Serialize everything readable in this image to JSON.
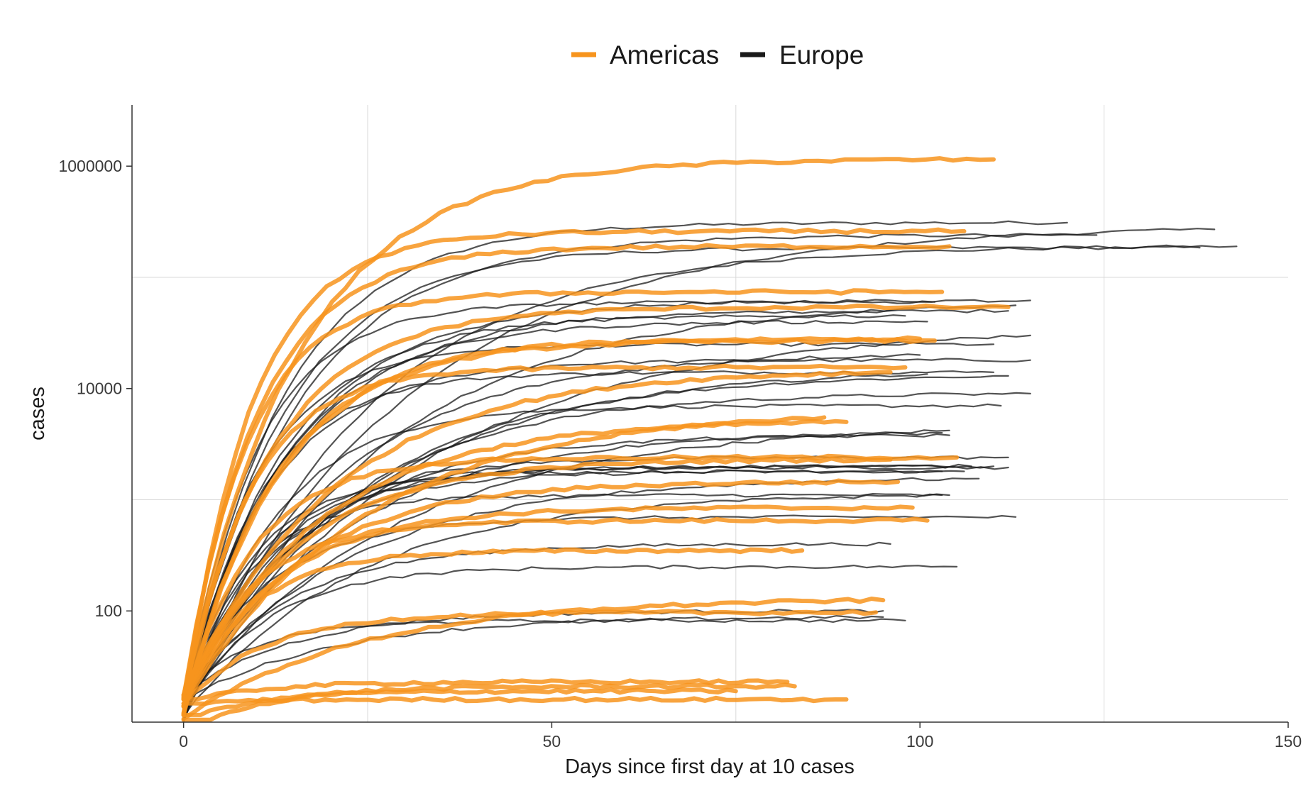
{
  "chart_data": {
    "type": "line",
    "title": "",
    "xlabel": "Days since first day at 10 cases",
    "ylabel": "cases",
    "xlim": [
      -7,
      150
    ],
    "ylim_log10": [
      1.0,
      6.55
    ],
    "y_scale": "log10",
    "x_ticks": [
      0,
      50,
      100,
      150
    ],
    "x_tick_labels": [
      "0",
      "50",
      "100",
      "150"
    ],
    "y_ticks": [
      100,
      10000,
      1000000
    ],
    "y_tick_labels": [
      "100",
      "10000",
      "1000000"
    ],
    "minor_grid_y": [
      10,
      1000,
      100000
    ],
    "minor_grid_x": [
      25,
      75,
      125
    ],
    "grid": "major-and-minor, light gray",
    "legend": {
      "position": "top",
      "entries": [
        {
          "label": "Americas",
          "color": "#F7941D"
        },
        {
          "label": "Europe",
          "color": "#1a1a1a"
        }
      ]
    },
    "groups": [
      {
        "name": "Europe",
        "color": "#1a1a1a",
        "series_endpoints": [
          {
            "days": 120,
            "cases": 310000
          },
          {
            "days": 140,
            "cases": 270000
          },
          {
            "days": 143,
            "cases": 190000
          },
          {
            "days": 138,
            "cases": 185000
          },
          {
            "days": 124,
            "cases": 240000
          },
          {
            "days": 115,
            "cases": 62000
          },
          {
            "days": 113,
            "cases": 56000
          },
          {
            "days": 112,
            "cases": 50000
          },
          {
            "days": 115,
            "cases": 30000
          },
          {
            "days": 110,
            "cases": 25000
          },
          {
            "days": 115,
            "cases": 18000
          },
          {
            "days": 112,
            "cases": 13000
          },
          {
            "days": 110,
            "cases": 14000
          },
          {
            "days": 115,
            "cases": 9000
          },
          {
            "days": 111,
            "cases": 7000
          },
          {
            "days": 103,
            "cases": 4000
          },
          {
            "days": 104,
            "cases": 4200
          },
          {
            "days": 112,
            "cases": 2400
          },
          {
            "days": 112,
            "cases": 1950
          },
          {
            "days": 110,
            "cases": 2000
          },
          {
            "days": 106,
            "cases": 1800
          },
          {
            "days": 108,
            "cases": 1550
          },
          {
            "days": 104,
            "cases": 1100
          },
          {
            "days": 113,
            "cases": 700
          },
          {
            "days": 96,
            "cases": 400
          },
          {
            "days": 95,
            "cases": 100
          },
          {
            "days": 98,
            "cases": 82
          },
          {
            "days": 95,
            "cases": 88
          },
          {
            "days": 105,
            "cases": 250
          },
          {
            "days": 103,
            "cases": 1800
          },
          {
            "days": 102,
            "cases": 60000
          },
          {
            "days": 101,
            "cases": 40000
          },
          {
            "days": 100,
            "cases": 20000
          },
          {
            "days": 98,
            "cases": 45000
          },
          {
            "days": 101,
            "cases": 13500
          },
          {
            "days": 104,
            "cases": 3800
          },
          {
            "days": 107,
            "cases": 2000
          },
          {
            "days": 103,
            "cases": 1100
          }
        ]
      },
      {
        "name": "Americas",
        "color": "#F7941D",
        "series_endpoints": [
          {
            "days": 110,
            "cases": 1150000
          },
          {
            "days": 106,
            "cases": 260000
          },
          {
            "days": 104,
            "cases": 190000
          },
          {
            "days": 112,
            "cases": 54000
          },
          {
            "days": 103,
            "cases": 74000
          },
          {
            "days": 100,
            "cases": 28000
          },
          {
            "days": 102,
            "cases": 27000
          },
          {
            "days": 98,
            "cases": 15500
          },
          {
            "days": 96,
            "cases": 14000
          },
          {
            "days": 87,
            "cases": 5500
          },
          {
            "days": 90,
            "cases": 5000
          },
          {
            "days": 96,
            "cases": 2300
          },
          {
            "days": 105,
            "cases": 2400
          },
          {
            "days": 97,
            "cases": 1450
          },
          {
            "days": 99,
            "cases": 850
          },
          {
            "days": 101,
            "cases": 650
          },
          {
            "days": 84,
            "cases": 350
          },
          {
            "days": 95,
            "cases": 125
          },
          {
            "days": 94,
            "cases": 97
          },
          {
            "days": 82,
            "cases": 23
          },
          {
            "days": 83,
            "cases": 21
          },
          {
            "days": 75,
            "cases": 19
          },
          {
            "days": 90,
            "cases": 16
          }
        ]
      }
    ]
  }
}
